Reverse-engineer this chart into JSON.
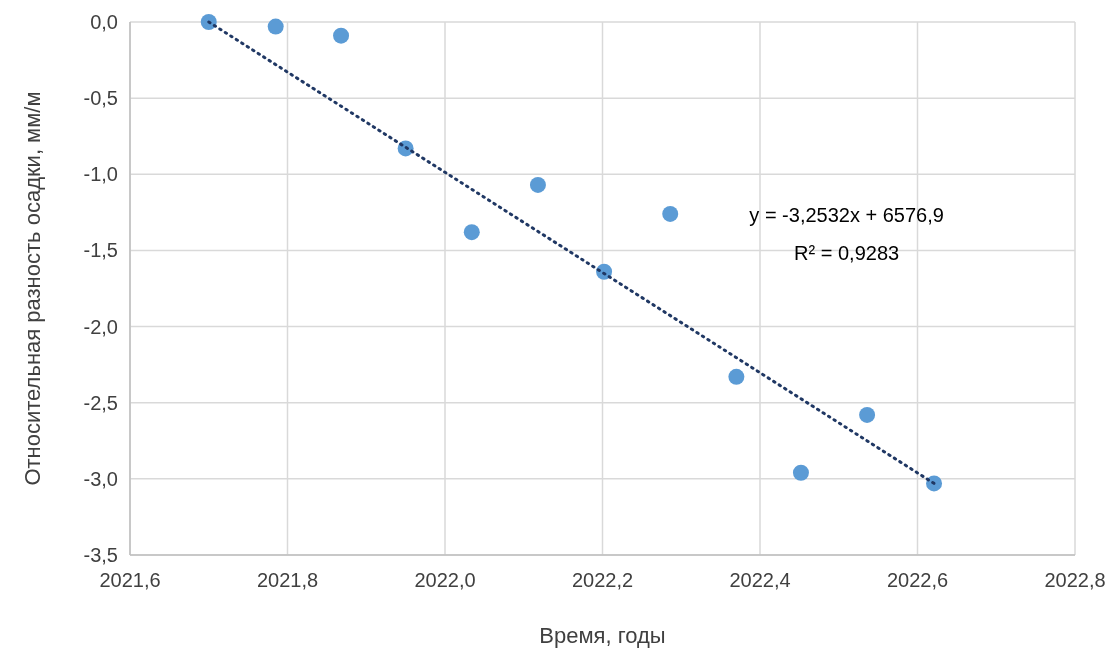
{
  "chart_data": {
    "type": "scatter",
    "xlabel": "Время, годы",
    "ylabel": "Относительная разность осадки, мм/м",
    "annotations": [
      "y = -3,2532x + 6576,9",
      "R² = 0,9283"
    ],
    "xlim": [
      2021.6,
      2022.8
    ],
    "xticks": [
      {
        "value": 2021.6,
        "label": "2021,6"
      },
      {
        "value": 2021.8,
        "label": "2021,8"
      },
      {
        "value": 2022.0,
        "label": "2022,0"
      },
      {
        "value": 2022.2,
        "label": "2022,2"
      },
      {
        "value": 2022.4,
        "label": "2022,4"
      },
      {
        "value": 2022.6,
        "label": "2022,6"
      },
      {
        "value": 2022.8,
        "label": "2022,8"
      }
    ],
    "ylim": [
      -3.5,
      0
    ],
    "yticks": [
      {
        "value": 0,
        "label": "0,0"
      },
      {
        "value": -0.5,
        "label": "-0,5"
      },
      {
        "value": -1,
        "label": "-1,0"
      },
      {
        "value": -1.5,
        "label": "-1,5"
      },
      {
        "value": -2,
        "label": "-2,0"
      },
      {
        "value": -2.5,
        "label": "-2,5"
      },
      {
        "value": -3,
        "label": "-3,0"
      },
      {
        "value": -3.5,
        "label": "-3,5"
      }
    ],
    "grid": true,
    "series": [
      {
        "color": "#5b9bd5",
        "marker": "circle",
        "x": [
          2021.7,
          2021.785,
          2021.868,
          2021.95,
          2022.034,
          2022.118,
          2022.202,
          2022.286,
          2022.37,
          2022.452,
          2022.536,
          2022.621
        ],
        "values": [
          0,
          -0.03,
          -0.09,
          -0.83,
          -1.38,
          -1.07,
          -1.64,
          -1.26,
          -2.33,
          -2.96,
          -2.58,
          -3.03
        ]
      },
      {
        "type": "line",
        "color": "#203864",
        "line_style": "dotted",
        "x": [
          2021.7,
          2022.621
        ],
        "values": [
          0,
          -3.03
        ]
      }
    ]
  }
}
